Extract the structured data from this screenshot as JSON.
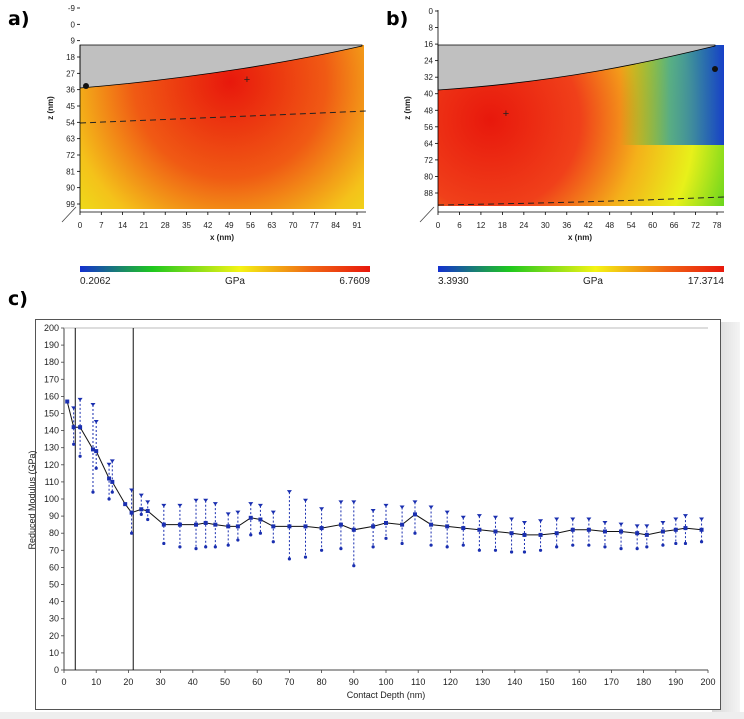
{
  "panels": {
    "a": {
      "letter": "a)",
      "xlabel": "x (nm)",
      "ylabel": "z (nm)",
      "xticks": [
        "0",
        "7",
        "14",
        "21",
        "28",
        "35",
        "42",
        "49",
        "56",
        "63",
        "70",
        "77",
        "84",
        "91"
      ],
      "yticks": [
        "-9",
        "0",
        "9",
        "18",
        "27",
        "36",
        "45",
        "54",
        "63",
        "72",
        "81",
        "90",
        "99"
      ],
      "colorbar_min": "0.2062",
      "colorbar_unit": "GPa",
      "colorbar_max": "6.7609"
    },
    "b": {
      "letter": "b)",
      "xlabel": "x (nm)",
      "ylabel": "z (nm)",
      "xticks": [
        "0",
        "6",
        "12",
        "18",
        "24",
        "30",
        "36",
        "42",
        "48",
        "54",
        "60",
        "66",
        "72",
        "78"
      ],
      "yticks": [
        "0",
        "8",
        "16",
        "24",
        "32",
        "40",
        "48",
        "56",
        "64",
        "72",
        "80",
        "88"
      ],
      "colorbar_min": "3.3930",
      "colorbar_unit": "GPa",
      "colorbar_max": "17.3714"
    },
    "c": {
      "letter": "c)"
    }
  },
  "colors": {
    "map_red": "#e8180c",
    "map_yellow": "#f4f414",
    "map_green": "#1ec81e",
    "map_blue": "#1430d0",
    "indenter_gray": "#c0c0c0",
    "series_blue": "#1a2fb0",
    "line_dark": "#111111"
  },
  "chart_data": {
    "type": "line",
    "title": "",
    "xlabel": "Contact Depth (nm)",
    "ylabel": "Reduced Modulus (GPa)",
    "xlim": [
      0,
      200
    ],
    "ylim": [
      0,
      200
    ],
    "xticks": [
      0,
      10,
      20,
      30,
      40,
      50,
      60,
      70,
      80,
      90,
      100,
      110,
      120,
      130,
      140,
      150,
      160,
      170,
      180,
      190,
      200
    ],
    "yticks": [
      0,
      10,
      20,
      30,
      40,
      50,
      60,
      70,
      80,
      90,
      100,
      110,
      120,
      130,
      140,
      150,
      160,
      170,
      180,
      190,
      200
    ],
    "vertical_markers": [
      3.5,
      21.5
    ],
    "grid": false,
    "series": [
      {
        "x": [
          1,
          3,
          5,
          9,
          10,
          14,
          15,
          19,
          21,
          24,
          26,
          31,
          36,
          41,
          44,
          47,
          51,
          54,
          58,
          61,
          65,
          70,
          75,
          80,
          86,
          90,
          96,
          100,
          105,
          109,
          114,
          119,
          124,
          129,
          134,
          139,
          143,
          148,
          153,
          158,
          163,
          168,
          173,
          178,
          181,
          186,
          190,
          193,
          198
        ],
        "y": [
          157,
          142,
          142,
          129,
          128,
          112,
          110,
          97,
          92,
          94,
          93,
          85,
          85,
          85,
          86,
          85,
          84,
          84,
          89,
          88,
          84,
          84,
          84,
          83,
          85,
          82,
          84,
          86,
          85,
          91,
          85,
          84,
          83,
          82,
          81,
          80,
          79,
          79,
          80,
          82,
          82,
          81,
          81,
          80,
          79,
          81,
          82,
          83,
          82
        ],
        "err_low": [
          null,
          132,
          125,
          104,
          118,
          100,
          104,
          null,
          80,
          91,
          88,
          74,
          72,
          71,
          72,
          72,
          73,
          76,
          79,
          80,
          75,
          65,
          66,
          70,
          71,
          61,
          72,
          77,
          74,
          80,
          73,
          72,
          73,
          70,
          70,
          69,
          69,
          70,
          72,
          73,
          73,
          72,
          71,
          71,
          72,
          73,
          74,
          74,
          75
        ],
        "err_high": [
          null,
          153,
          158,
          155,
          145,
          120,
          122,
          null,
          105,
          102,
          98,
          96,
          96,
          99,
          99,
          97,
          91,
          92,
          97,
          96,
          92,
          104,
          99,
          94,
          98,
          98,
          93,
          96,
          95,
          98,
          95,
          92,
          89,
          90,
          89,
          88,
          86,
          87,
          88,
          88,
          88,
          86,
          85,
          84,
          84,
          86,
          88,
          90,
          88
        ]
      }
    ]
  }
}
